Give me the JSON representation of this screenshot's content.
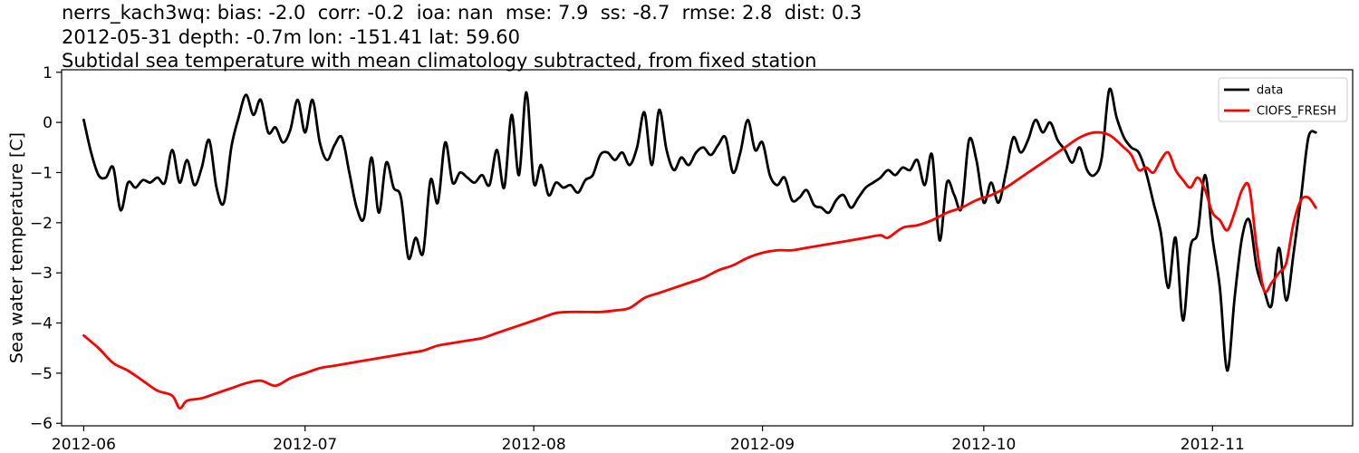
{
  "chart_data": {
    "type": "line",
    "title_lines": [
      "nerrs_kach3wq: bias: -2.0  corr: -0.2  ioa: nan  mse: 7.9  ss: -8.7  rmse: 2.8  dist: 0.3",
      "2012-05-31 depth: -0.7m lon: -151.41 lat: 59.60",
      "Subtidal sea temperature with mean climatology subtracted, from fixed station"
    ],
    "ylabel": "Sea water temperature [C]",
    "xlabel": "",
    "x_axis": {
      "type": "date",
      "range": [
        "2012-05-29",
        "2012-11-20"
      ],
      "ticks": [
        "2012-06-01",
        "2012-07-01",
        "2012-08-01",
        "2012-09-01",
        "2012-10-01",
        "2012-11-01"
      ],
      "tick_labels": [
        "2012-06",
        "2012-07",
        "2012-08",
        "2012-09",
        "2012-10",
        "2012-11"
      ]
    },
    "y_axis": {
      "range": [
        -6.05,
        1.05
      ],
      "ticks": [
        -6,
        -5,
        -4,
        -3,
        -2,
        -1,
        0,
        1
      ],
      "tick_labels": [
        "−6",
        "−5",
        "−4",
        "−3",
        "−2",
        "−1",
        "0",
        "1"
      ]
    },
    "grid": false,
    "legend": {
      "position": "top-right",
      "entries": [
        "data",
        "CIOFS_FRESH"
      ]
    },
    "series": [
      {
        "name": "data",
        "color": "#000000",
        "points": [
          [
            "2012-06-01",
            0.05
          ],
          [
            "2012-06-02",
            -0.6
          ],
          [
            "2012-06-03",
            -1.05
          ],
          [
            "2012-06-04",
            -1.1
          ],
          [
            "2012-06-05",
            -0.9
          ],
          [
            "2012-06-06",
            -1.75
          ],
          [
            "2012-06-07",
            -1.2
          ],
          [
            "2012-06-08",
            -1.3
          ],
          [
            "2012-06-09",
            -1.15
          ],
          [
            "2012-06-10",
            -1.2
          ],
          [
            "2012-06-11",
            -1.1
          ],
          [
            "2012-06-12",
            -1.2
          ],
          [
            "2012-06-13",
            -0.55
          ],
          [
            "2012-06-14",
            -1.2
          ],
          [
            "2012-06-15",
            -0.75
          ],
          [
            "2012-06-16",
            -1.25
          ],
          [
            "2012-06-17",
            -0.9
          ],
          [
            "2012-06-18",
            -0.35
          ],
          [
            "2012-06-19",
            -1.3
          ],
          [
            "2012-06-20",
            -1.6
          ],
          [
            "2012-06-21",
            -0.5
          ],
          [
            "2012-06-22",
            0.1
          ],
          [
            "2012-06-23",
            0.55
          ],
          [
            "2012-06-24",
            0.15
          ],
          [
            "2012-06-25",
            0.45
          ],
          [
            "2012-06-26",
            -0.2
          ],
          [
            "2012-06-27",
            -0.1
          ],
          [
            "2012-06-28",
            -0.4
          ],
          [
            "2012-06-29",
            -0.15
          ],
          [
            "2012-06-30",
            0.45
          ],
          [
            "2012-07-01",
            -0.2
          ],
          [
            "2012-07-02",
            0.45
          ],
          [
            "2012-07-03",
            -0.4
          ],
          [
            "2012-07-04",
            -0.75
          ],
          [
            "2012-07-05",
            -0.45
          ],
          [
            "2012-07-06",
            -0.3
          ],
          [
            "2012-07-07",
            -1.0
          ],
          [
            "2012-07-08",
            -1.7
          ],
          [
            "2012-07-09",
            -1.9
          ],
          [
            "2012-07-10",
            -0.7
          ],
          [
            "2012-07-11",
            -1.8
          ],
          [
            "2012-07-12",
            -0.8
          ],
          [
            "2012-07-13",
            -1.3
          ],
          [
            "2012-07-14",
            -1.5
          ],
          [
            "2012-07-15",
            -2.7
          ],
          [
            "2012-07-16",
            -2.3
          ],
          [
            "2012-07-17",
            -2.6
          ],
          [
            "2012-07-18",
            -1.15
          ],
          [
            "2012-07-19",
            -1.6
          ],
          [
            "2012-07-20",
            -0.4
          ],
          [
            "2012-07-21",
            -1.2
          ],
          [
            "2012-07-22",
            -1.0
          ],
          [
            "2012-07-23",
            -1.1
          ],
          [
            "2012-07-24",
            -1.2
          ],
          [
            "2012-07-25",
            -1.05
          ],
          [
            "2012-07-26",
            -1.25
          ],
          [
            "2012-07-27",
            -0.55
          ],
          [
            "2012-07-28",
            -1.3
          ],
          [
            "2012-07-29",
            0.15
          ],
          [
            "2012-07-30",
            -1.05
          ],
          [
            "2012-07-31",
            0.6
          ],
          [
            "2012-08-01",
            -1.2
          ],
          [
            "2012-08-02",
            -0.85
          ],
          [
            "2012-08-03",
            -1.45
          ],
          [
            "2012-08-04",
            -1.2
          ],
          [
            "2012-08-05",
            -1.3
          ],
          [
            "2012-08-06",
            -1.25
          ],
          [
            "2012-08-07",
            -1.4
          ],
          [
            "2012-08-08",
            -1.15
          ],
          [
            "2012-08-09",
            -1.05
          ],
          [
            "2012-08-10",
            -0.65
          ],
          [
            "2012-08-11",
            -0.6
          ],
          [
            "2012-08-12",
            -0.75
          ],
          [
            "2012-08-13",
            -0.6
          ],
          [
            "2012-08-14",
            -0.85
          ],
          [
            "2012-08-15",
            -0.5
          ],
          [
            "2012-08-16",
            0.2
          ],
          [
            "2012-08-17",
            -0.85
          ],
          [
            "2012-08-18",
            0.25
          ],
          [
            "2012-08-19",
            -0.55
          ],
          [
            "2012-08-20",
            -0.95
          ],
          [
            "2012-08-21",
            -0.7
          ],
          [
            "2012-08-22",
            -0.85
          ],
          [
            "2012-08-23",
            -0.6
          ],
          [
            "2012-08-24",
            -0.5
          ],
          [
            "2012-08-25",
            -0.65
          ],
          [
            "2012-08-26",
            -0.45
          ],
          [
            "2012-08-27",
            -0.3
          ],
          [
            "2012-08-28",
            -1.0
          ],
          [
            "2012-08-29",
            -0.6
          ],
          [
            "2012-08-30",
            0.05
          ],
          [
            "2012-08-31",
            -0.55
          ],
          [
            "2012-09-01",
            -0.4
          ],
          [
            "2012-09-02",
            -1.05
          ],
          [
            "2012-09-03",
            -1.25
          ],
          [
            "2012-09-04",
            -1.1
          ],
          [
            "2012-09-05",
            -1.55
          ],
          [
            "2012-09-06",
            -1.5
          ],
          [
            "2012-09-07",
            -1.35
          ],
          [
            "2012-09-08",
            -1.65
          ],
          [
            "2012-09-09",
            -1.7
          ],
          [
            "2012-09-10",
            -1.8
          ],
          [
            "2012-09-11",
            -1.55
          ],
          [
            "2012-09-12",
            -1.45
          ],
          [
            "2012-09-13",
            -1.7
          ],
          [
            "2012-09-14",
            -1.5
          ],
          [
            "2012-09-15",
            -1.3
          ],
          [
            "2012-09-16",
            -1.2
          ],
          [
            "2012-09-17",
            -1.1
          ],
          [
            "2012-09-18",
            -0.95
          ],
          [
            "2012-09-19",
            -1.05
          ],
          [
            "2012-09-20",
            -0.9
          ],
          [
            "2012-09-21",
            -0.95
          ],
          [
            "2012-09-22",
            -0.75
          ],
          [
            "2012-09-23",
            -1.25
          ],
          [
            "2012-09-24",
            -0.65
          ],
          [
            "2012-09-25",
            -2.35
          ],
          [
            "2012-09-26",
            -1.2
          ],
          [
            "2012-09-27",
            -1.45
          ],
          [
            "2012-09-28",
            -1.7
          ],
          [
            "2012-09-29",
            -0.35
          ],
          [
            "2012-09-30",
            -0.75
          ],
          [
            "2012-10-01",
            -1.6
          ],
          [
            "2012-10-02",
            -1.2
          ],
          [
            "2012-10-03",
            -1.6
          ],
          [
            "2012-10-04",
            -1.0
          ],
          [
            "2012-10-05",
            -0.3
          ],
          [
            "2012-10-06",
            -0.6
          ],
          [
            "2012-10-07",
            -0.35
          ],
          [
            "2012-10-08",
            0.05
          ],
          [
            "2012-10-09",
            -0.2
          ],
          [
            "2012-10-10",
            0.0
          ],
          [
            "2012-10-11",
            -0.35
          ],
          [
            "2012-10-12",
            -0.55
          ],
          [
            "2012-10-13",
            -0.8
          ],
          [
            "2012-10-14",
            -0.5
          ],
          [
            "2012-10-15",
            -0.95
          ],
          [
            "2012-10-16",
            -1.05
          ],
          [
            "2012-10-17",
            -0.7
          ],
          [
            "2012-10-18",
            0.65
          ],
          [
            "2012-10-19",
            0.1
          ],
          [
            "2012-10-20",
            -0.3
          ],
          [
            "2012-10-21",
            -0.5
          ],
          [
            "2012-10-22",
            -0.6
          ],
          [
            "2012-10-23",
            -1.0
          ],
          [
            "2012-10-24",
            -1.6
          ],
          [
            "2012-10-25",
            -2.2
          ],
          [
            "2012-10-26",
            -3.3
          ],
          [
            "2012-10-27",
            -2.3
          ],
          [
            "2012-10-28",
            -3.95
          ],
          [
            "2012-10-29",
            -2.5
          ],
          [
            "2012-10-30",
            -2.2
          ],
          [
            "2012-10-31",
            -1.05
          ],
          [
            "2012-11-01",
            -2.3
          ],
          [
            "2012-11-02",
            -3.3
          ],
          [
            "2012-11-03",
            -4.95
          ],
          [
            "2012-11-04",
            -3.5
          ],
          [
            "2012-11-05",
            -2.3
          ],
          [
            "2012-11-06",
            -1.95
          ],
          [
            "2012-11-07",
            -2.9
          ],
          [
            "2012-11-08",
            -3.35
          ],
          [
            "2012-11-09",
            -3.65
          ],
          [
            "2012-11-10",
            -2.5
          ],
          [
            "2012-11-11",
            -3.55
          ],
          [
            "2012-11-12",
            -2.6
          ],
          [
            "2012-11-13",
            -1.5
          ],
          [
            "2012-11-14",
            -0.3
          ],
          [
            "2012-11-15",
            -0.2
          ]
        ]
      },
      {
        "name": "CIOFS_FRESH",
        "color": "#ff0000",
        "points": [
          [
            "2012-06-01",
            -4.25
          ],
          [
            "2012-06-03",
            -4.5
          ],
          [
            "2012-06-05",
            -4.8
          ],
          [
            "2012-06-07",
            -4.95
          ],
          [
            "2012-06-09",
            -5.15
          ],
          [
            "2012-06-11",
            -5.35
          ],
          [
            "2012-06-13",
            -5.45
          ],
          [
            "2012-06-14",
            -5.7
          ],
          [
            "2012-06-15",
            -5.55
          ],
          [
            "2012-06-17",
            -5.5
          ],
          [
            "2012-06-19",
            -5.4
          ],
          [
            "2012-06-21",
            -5.3
          ],
          [
            "2012-06-23",
            -5.2
          ],
          [
            "2012-06-25",
            -5.15
          ],
          [
            "2012-06-27",
            -5.25
          ],
          [
            "2012-06-29",
            -5.1
          ],
          [
            "2012-07-01",
            -5.0
          ],
          [
            "2012-07-03",
            -4.9
          ],
          [
            "2012-07-05",
            -4.85
          ],
          [
            "2012-07-07",
            -4.8
          ],
          [
            "2012-07-09",
            -4.75
          ],
          [
            "2012-07-11",
            -4.7
          ],
          [
            "2012-07-13",
            -4.65
          ],
          [
            "2012-07-15",
            -4.6
          ],
          [
            "2012-07-17",
            -4.55
          ],
          [
            "2012-07-19",
            -4.45
          ],
          [
            "2012-07-21",
            -4.4
          ],
          [
            "2012-07-23",
            -4.35
          ],
          [
            "2012-07-25",
            -4.3
          ],
          [
            "2012-07-27",
            -4.2
          ],
          [
            "2012-07-29",
            -4.1
          ],
          [
            "2012-07-31",
            -4.0
          ],
          [
            "2012-08-02",
            -3.9
          ],
          [
            "2012-08-04",
            -3.8
          ],
          [
            "2012-08-06",
            -3.78
          ],
          [
            "2012-08-08",
            -3.78
          ],
          [
            "2012-08-10",
            -3.78
          ],
          [
            "2012-08-12",
            -3.75
          ],
          [
            "2012-08-14",
            -3.7
          ],
          [
            "2012-08-16",
            -3.5
          ],
          [
            "2012-08-18",
            -3.4
          ],
          [
            "2012-08-20",
            -3.3
          ],
          [
            "2012-08-22",
            -3.2
          ],
          [
            "2012-08-24",
            -3.1
          ],
          [
            "2012-08-26",
            -2.95
          ],
          [
            "2012-08-28",
            -2.85
          ],
          [
            "2012-08-30",
            -2.7
          ],
          [
            "2012-09-01",
            -2.6
          ],
          [
            "2012-09-03",
            -2.55
          ],
          [
            "2012-09-05",
            -2.55
          ],
          [
            "2012-09-07",
            -2.5
          ],
          [
            "2012-09-09",
            -2.45
          ],
          [
            "2012-09-11",
            -2.4
          ],
          [
            "2012-09-13",
            -2.35
          ],
          [
            "2012-09-15",
            -2.3
          ],
          [
            "2012-09-17",
            -2.25
          ],
          [
            "2012-09-18",
            -2.3
          ],
          [
            "2012-09-20",
            -2.1
          ],
          [
            "2012-09-22",
            -2.05
          ],
          [
            "2012-09-24",
            -1.95
          ],
          [
            "2012-09-26",
            -1.8
          ],
          [
            "2012-09-28",
            -1.7
          ],
          [
            "2012-09-30",
            -1.55
          ],
          [
            "2012-10-02",
            -1.45
          ],
          [
            "2012-10-04",
            -1.3
          ],
          [
            "2012-10-06",
            -1.1
          ],
          [
            "2012-10-08",
            -0.9
          ],
          [
            "2012-10-10",
            -0.7
          ],
          [
            "2012-10-12",
            -0.5
          ],
          [
            "2012-10-14",
            -0.3
          ],
          [
            "2012-10-16",
            -0.2
          ],
          [
            "2012-10-18",
            -0.25
          ],
          [
            "2012-10-20",
            -0.5
          ],
          [
            "2012-10-21",
            -0.65
          ],
          [
            "2012-10-22",
            -0.95
          ],
          [
            "2012-10-23",
            -0.9
          ],
          [
            "2012-10-24",
            -1.0
          ],
          [
            "2012-10-25",
            -0.75
          ],
          [
            "2012-10-26",
            -0.6
          ],
          [
            "2012-10-27",
            -0.95
          ],
          [
            "2012-10-28",
            -1.15
          ],
          [
            "2012-10-29",
            -1.3
          ],
          [
            "2012-10-30",
            -1.1
          ],
          [
            "2012-10-31",
            -1.35
          ],
          [
            "2012-11-01",
            -1.8
          ],
          [
            "2012-11-02",
            -1.95
          ],
          [
            "2012-11-03",
            -2.15
          ],
          [
            "2012-11-04",
            -1.8
          ],
          [
            "2012-11-05",
            -1.35
          ],
          [
            "2012-11-06",
            -1.3
          ],
          [
            "2012-11-07",
            -2.5
          ],
          [
            "2012-11-08",
            -3.35
          ],
          [
            "2012-11-09",
            -3.2
          ],
          [
            "2012-11-10",
            -3.0
          ],
          [
            "2012-11-11",
            -2.8
          ],
          [
            "2012-11-12",
            -2.0
          ],
          [
            "2012-11-13",
            -1.55
          ],
          [
            "2012-11-14",
            -1.5
          ],
          [
            "2012-11-15",
            -1.7
          ]
        ]
      }
    ]
  }
}
